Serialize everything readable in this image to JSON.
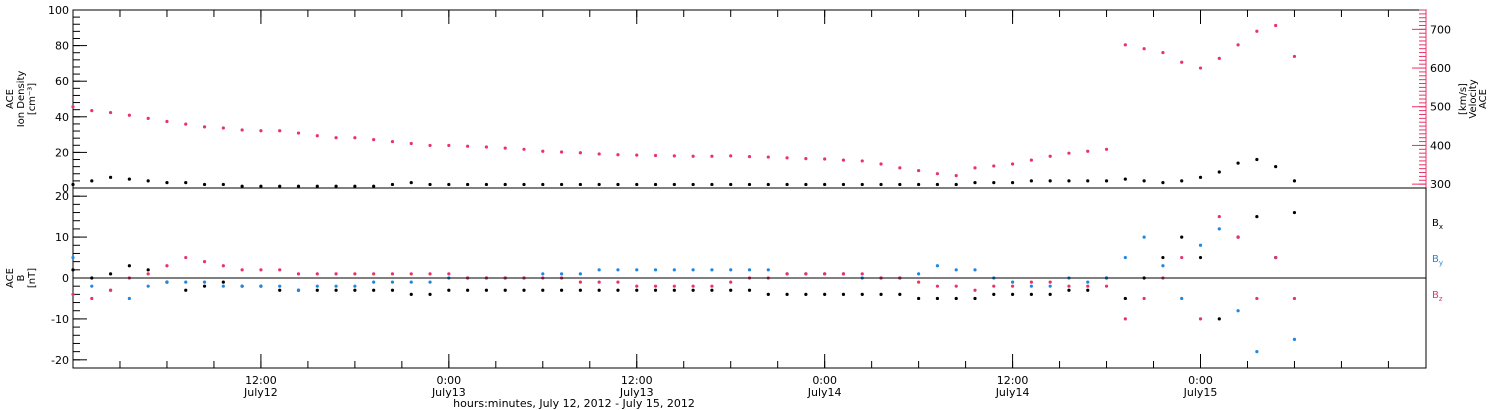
{
  "chart_data": [
    {
      "type": "scatter",
      "panel": "top",
      "ylabel_left": [
        "ACE",
        "Ion Density",
        "[cm⁻³]"
      ],
      "ylabel_right": [
        "ACE",
        "Velocity",
        "[km/s]"
      ],
      "ylim_left": [
        0,
        100
      ],
      "yticks_left": [
        "0",
        "20",
        "40",
        "60",
        "80",
        "100"
      ],
      "ylim_right": [
        290,
        750
      ],
      "yticks_right": [
        "300",
        "400",
        "500",
        "600",
        "700"
      ],
      "series": [
        {
          "color": "#000000",
          "axis": "left",
          "x": [
            0,
            0.05,
            0.1,
            0.15,
            0.2,
            0.25,
            0.3,
            0.35,
            0.4,
            0.45,
            0.5,
            0.55,
            0.6,
            0.65,
            0.7,
            0.75,
            0.8,
            0.85,
            0.9,
            0.95,
            1.0,
            1.05,
            1.1,
            1.15,
            1.2,
            1.25,
            1.3,
            1.35,
            1.4,
            1.45,
            1.5,
            1.55,
            1.6,
            1.65,
            1.7,
            1.75,
            1.8,
            1.85,
            1.9,
            1.95,
            2.0,
            2.05,
            2.1,
            2.15,
            2.2,
            2.25,
            2.3,
            2.35,
            2.4,
            2.45,
            2.5,
            2.55,
            2.6,
            2.65,
            2.7,
            2.75,
            2.8,
            2.85,
            2.9,
            2.95,
            3.0,
            3.05,
            3.1,
            3.15,
            3.2,
            3.25
          ],
          "y": [
            2,
            4,
            6,
            5,
            4,
            3,
            3,
            2,
            2,
            1,
            1,
            1,
            1,
            1,
            1,
            1,
            1,
            2,
            3,
            2,
            2,
            2,
            2,
            2,
            2,
            2,
            2,
            2,
            2,
            2,
            2,
            2,
            2,
            2,
            2,
            2,
            2,
            2,
            2,
            2,
            2,
            2,
            2,
            2,
            2,
            2,
            2,
            2,
            3,
            3,
            3,
            4,
            4,
            4,
            4,
            4,
            5,
            4,
            3,
            4,
            6,
            9,
            14,
            16,
            12,
            4
          ]
        },
        {
          "color": "#e8336a",
          "axis": "right",
          "x": [
            0,
            0.05,
            0.1,
            0.15,
            0.2,
            0.25,
            0.3,
            0.35,
            0.4,
            0.45,
            0.5,
            0.55,
            0.6,
            0.65,
            0.7,
            0.75,
            0.8,
            0.85,
            0.9,
            0.95,
            1.0,
            1.05,
            1.1,
            1.15,
            1.2,
            1.25,
            1.3,
            1.35,
            1.4,
            1.45,
            1.5,
            1.55,
            1.6,
            1.65,
            1.7,
            1.75,
            1.8,
            1.85,
            1.9,
            1.95,
            2.0,
            2.05,
            2.1,
            2.15,
            2.2,
            2.25,
            2.3,
            2.35,
            2.4,
            2.45,
            2.5,
            2.55,
            2.6,
            2.65,
            2.7,
            2.75,
            2.8,
            2.85,
            2.9,
            2.95,
            3.0,
            3.05,
            3.1,
            3.15,
            3.2,
            3.25
          ],
          "y": [
            500,
            490,
            485,
            478,
            470,
            462,
            455,
            448,
            445,
            440,
            438,
            438,
            432,
            425,
            420,
            420,
            415,
            410,
            405,
            400,
            400,
            398,
            396,
            393,
            390,
            385,
            383,
            381,
            378,
            376,
            375,
            374,
            373,
            372,
            372,
            373,
            371,
            370,
            368,
            366,
            365,
            362,
            360,
            352,
            342,
            335,
            327,
            322,
            342,
            347,
            352,
            362,
            372,
            380,
            385,
            390,
            660,
            650,
            640,
            615,
            600,
            625,
            660,
            695,
            710,
            630
          ]
        }
      ]
    },
    {
      "type": "scatter",
      "panel": "bottom",
      "ylabel_left": [
        "ACE",
        "B",
        "[nT]"
      ],
      "ylim": [
        -22,
        22
      ],
      "yticks": [
        "-20",
        "-10",
        "0",
        "10",
        "20"
      ],
      "xlim": [
        0,
        3.6
      ],
      "xtick_times": [
        "12:00",
        "0:00",
        "12:00",
        "0:00",
        "12:00",
        "0:00"
      ],
      "xtick_dates": [
        "July12",
        "July13",
        "July13",
        "July14",
        "July14",
        "July15"
      ],
      "xlabel": "hours:minutes, July 12, 2012 - July 15, 2012",
      "legend_position": "right",
      "series": [
        {
          "name": "Bx",
          "name_main": "B",
          "name_sub": "x",
          "color": "#000000",
          "x": [
            0,
            0.05,
            0.1,
            0.15,
            0.2,
            0.25,
            0.3,
            0.35,
            0.4,
            0.45,
            0.5,
            0.55,
            0.6,
            0.65,
            0.7,
            0.75,
            0.8,
            0.85,
            0.9,
            0.95,
            1.0,
            1.05,
            1.1,
            1.15,
            1.2,
            1.25,
            1.3,
            1.35,
            1.4,
            1.45,
            1.5,
            1.55,
            1.6,
            1.65,
            1.7,
            1.75,
            1.8,
            1.85,
            1.9,
            1.95,
            2.0,
            2.05,
            2.1,
            2.15,
            2.2,
            2.25,
            2.3,
            2.35,
            2.4,
            2.45,
            2.5,
            2.55,
            2.6,
            2.65,
            2.7,
            2.75,
            2.8,
            2.85,
            2.9,
            2.95,
            3.0,
            3.05,
            3.1,
            3.15,
            3.2,
            3.25
          ],
          "y": [
            2,
            0,
            1,
            3,
            2,
            -1,
            -3,
            -2,
            -1,
            -2,
            -2,
            -3,
            -3,
            -3,
            -3,
            -3,
            -3,
            -3,
            -4,
            -4,
            -3,
            -3,
            -3,
            -3,
            -3,
            -3,
            -3,
            -3,
            -3,
            -3,
            -3,
            -3,
            -3,
            -3,
            -3,
            -3,
            -3,
            -4,
            -4,
            -4,
            -4,
            -4,
            -4,
            -4,
            -4,
            -5,
            -5,
            -5,
            -5,
            -4,
            -4,
            -4,
            -4,
            -3,
            -3,
            0,
            -5,
            0,
            5,
            10,
            5,
            -10,
            10,
            15,
            5,
            16
          ]
        },
        {
          "name": "By",
          "name_main": "B",
          "name_sub": "y",
          "color": "#1f87e0",
          "x": [
            0,
            0.05,
            0.1,
            0.15,
            0.2,
            0.25,
            0.3,
            0.35,
            0.4,
            0.45,
            0.5,
            0.55,
            0.6,
            0.65,
            0.7,
            0.75,
            0.8,
            0.85,
            0.9,
            0.95,
            1.0,
            1.05,
            1.1,
            1.15,
            1.2,
            1.25,
            1.3,
            1.35,
            1.4,
            1.45,
            1.5,
            1.55,
            1.6,
            1.65,
            1.7,
            1.75,
            1.8,
            1.85,
            1.9,
            1.95,
            2.0,
            2.05,
            2.1,
            2.15,
            2.2,
            2.25,
            2.3,
            2.35,
            2.4,
            2.45,
            2.5,
            2.55,
            2.6,
            2.65,
            2.7,
            2.75,
            2.8,
            2.85,
            2.9,
            2.95,
            3.0,
            3.05,
            3.1,
            3.15,
            3.2,
            3.25
          ],
          "y": [
            5,
            -2,
            -3,
            -5,
            -2,
            -1,
            -1,
            -1,
            -2,
            -2,
            -2,
            -2,
            -3,
            -2,
            -2,
            -2,
            -1,
            -1,
            -1,
            -1,
            0,
            0,
            0,
            0,
            0,
            1,
            1,
            1,
            2,
            2,
            2,
            2,
            2,
            2,
            2,
            2,
            2,
            2,
            1,
            1,
            1,
            1,
            0,
            0,
            0,
            1,
            3,
            2,
            2,
            0,
            -1,
            -2,
            -2,
            0,
            -1,
            0,
            5,
            10,
            3,
            -5,
            8,
            12,
            -8,
            -18,
            5,
            -15
          ]
        },
        {
          "name": "Bz",
          "name_main": "B",
          "name_sub": "z",
          "color": "#e8336a",
          "x": [
            0,
            0.05,
            0.1,
            0.15,
            0.2,
            0.25,
            0.3,
            0.35,
            0.4,
            0.45,
            0.5,
            0.55,
            0.6,
            0.65,
            0.7,
            0.75,
            0.8,
            0.85,
            0.9,
            0.95,
            1.0,
            1.05,
            1.1,
            1.15,
            1.2,
            1.25,
            1.3,
            1.35,
            1.4,
            1.45,
            1.5,
            1.55,
            1.6,
            1.65,
            1.7,
            1.75,
            1.8,
            1.85,
            1.9,
            1.95,
            2.0,
            2.05,
            2.1,
            2.15,
            2.2,
            2.25,
            2.3,
            2.35,
            2.4,
            2.45,
            2.5,
            2.55,
            2.6,
            2.65,
            2.7,
            2.75,
            2.8,
            2.85,
            2.9,
            2.95,
            3.0,
            3.05,
            3.1,
            3.15,
            3.2,
            3.25
          ],
          "y": [
            -4,
            -5,
            -3,
            0,
            1,
            3,
            5,
            4,
            3,
            2,
            2,
            2,
            1,
            1,
            1,
            1,
            1,
            1,
            1,
            1,
            1,
            0,
            0,
            0,
            0,
            0,
            0,
            -1,
            -1,
            -1,
            -2,
            -2,
            -2,
            -2,
            -2,
            -1,
            0,
            0,
            1,
            1,
            1,
            1,
            1,
            0,
            0,
            -1,
            -2,
            -2,
            -3,
            -2,
            -2,
            -1,
            -1,
            -2,
            -2,
            -2,
            -10,
            -5,
            0,
            5,
            -10,
            15,
            10,
            -5,
            5,
            -5
          ]
        }
      ]
    }
  ]
}
